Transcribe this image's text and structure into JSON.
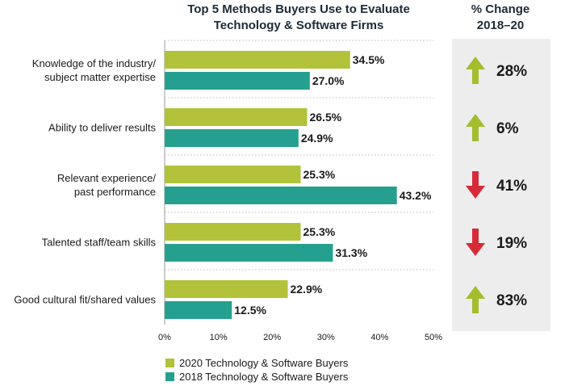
{
  "titles": {
    "main_line1": "Top 5 Methods Buyers Use to Evaluate",
    "main_line2": "Technology & Software Firms",
    "change_line1": "% Change",
    "change_line2": "2018–20"
  },
  "legend": {
    "series_2020": "2020 Technology & Software Buyers",
    "series_2018": "2018 Technology & Software Buyers"
  },
  "colors": {
    "series_2020": "#b2c23a",
    "series_2018": "#26a08e",
    "arrow_up": "#a3bd2f",
    "arrow_down": "#d72a38",
    "panel": "#ededed"
  },
  "chart_data": {
    "type": "bar",
    "orientation": "horizontal",
    "title": "Top 5 Methods Buyers Use to Evaluate Technology & Software Firms",
    "categories": [
      [
        "Knowledge of the industry/",
        "subject matter expertise"
      ],
      [
        "Ability to deliver results"
      ],
      [
        "Relevant experience/",
        "past performance"
      ],
      [
        "Talented staff/team skills"
      ],
      [
        "Good cultural fit/shared values"
      ]
    ],
    "series": [
      {
        "name": "2020 Technology & Software Buyers",
        "values": [
          34.5,
          26.5,
          25.3,
          25.3,
          22.9
        ],
        "labels": [
          "34.5%",
          "26.5%",
          "25.3%",
          "25.3%",
          "22.9%"
        ]
      },
      {
        "name": "2018 Technology & Software Buyers",
        "values": [
          27.0,
          24.9,
          43.2,
          31.3,
          12.5
        ],
        "labels": [
          "27.0%",
          "24.9%",
          "43.2%",
          "31.3%",
          "12.5%"
        ]
      }
    ],
    "xlim": [
      0,
      50
    ],
    "xticks": [
      "0%",
      "10%",
      "20%",
      "30%",
      "40%",
      "50%"
    ],
    "grid": "dotted horizontal separators",
    "legend_position": "bottom-left",
    "pct_change": [
      {
        "direction": "up",
        "label": "28%"
      },
      {
        "direction": "up",
        "label": "6%"
      },
      {
        "direction": "down",
        "label": "41%"
      },
      {
        "direction": "down",
        "label": "19%"
      },
      {
        "direction": "up",
        "label": "83%"
      }
    ]
  }
}
